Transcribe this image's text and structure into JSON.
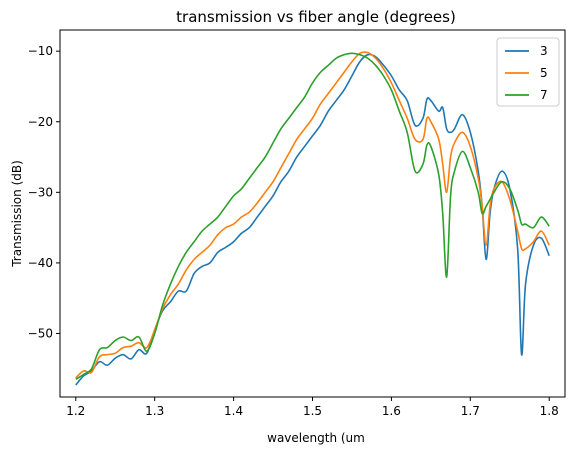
{
  "chart_data": {
    "type": "line",
    "title": "transmission vs fiber angle (degrees)",
    "xlabel": "wavelength (um",
    "ylabel": "Transmission (dB)",
    "xlim": [
      1.18,
      1.82
    ],
    "ylim": [
      -59,
      -7
    ],
    "xticks": [
      "1.2",
      "1.3",
      "1.4",
      "1.5",
      "1.6",
      "1.7",
      "1.8"
    ],
    "yticks": [
      "−10",
      "−20",
      "−30",
      "−40",
      "−50"
    ],
    "grid": false,
    "legend_position": "top-right",
    "series": [
      {
        "name": "3",
        "color": "#1f77b4",
        "points": [
          [
            1.2,
            -57.3
          ],
          [
            1.21,
            -56.0
          ],
          [
            1.22,
            -55.3
          ],
          [
            1.23,
            -54.0
          ],
          [
            1.24,
            -54.5
          ],
          [
            1.25,
            -53.5
          ],
          [
            1.26,
            -53.0
          ],
          [
            1.27,
            -53.6
          ],
          [
            1.28,
            -52.3
          ],
          [
            1.29,
            -52.8
          ],
          [
            1.3,
            -49.5
          ],
          [
            1.31,
            -46.8
          ],
          [
            1.32,
            -45.5
          ],
          [
            1.33,
            -44.0
          ],
          [
            1.34,
            -44.0
          ],
          [
            1.35,
            -41.5
          ],
          [
            1.36,
            -40.5
          ],
          [
            1.37,
            -40.0
          ],
          [
            1.38,
            -38.5
          ],
          [
            1.39,
            -37.8
          ],
          [
            1.4,
            -37.0
          ],
          [
            1.41,
            -35.8
          ],
          [
            1.42,
            -35.0
          ],
          [
            1.43,
            -33.5
          ],
          [
            1.44,
            -32.0
          ],
          [
            1.45,
            -30.5
          ],
          [
            1.46,
            -28.5
          ],
          [
            1.47,
            -27.0
          ],
          [
            1.48,
            -25.0
          ],
          [
            1.49,
            -23.5
          ],
          [
            1.5,
            -22.0
          ],
          [
            1.51,
            -20.5
          ],
          [
            1.52,
            -18.5
          ],
          [
            1.53,
            -17.0
          ],
          [
            1.54,
            -15.5
          ],
          [
            1.55,
            -13.5
          ],
          [
            1.56,
            -11.5
          ],
          [
            1.57,
            -10.5
          ],
          [
            1.58,
            -10.8
          ],
          [
            1.59,
            -12.0
          ],
          [
            1.6,
            -13.5
          ],
          [
            1.61,
            -15.5
          ],
          [
            1.62,
            -17.0
          ],
          [
            1.63,
            -20.5
          ],
          [
            1.64,
            -19.5
          ],
          [
            1.645,
            -16.8
          ],
          [
            1.65,
            -17.0
          ],
          [
            1.66,
            -18.5
          ],
          [
            1.665,
            -18.0
          ],
          [
            1.67,
            -21.0
          ],
          [
            1.675,
            -21.5
          ],
          [
            1.68,
            -21.0
          ],
          [
            1.69,
            -19.0
          ],
          [
            1.7,
            -21.5
          ],
          [
            1.71,
            -27.0
          ],
          [
            1.715,
            -32.0
          ],
          [
            1.72,
            -39.5
          ],
          [
            1.725,
            -33.0
          ],
          [
            1.73,
            -29.5
          ],
          [
            1.74,
            -27.0
          ],
          [
            1.75,
            -29.5
          ],
          [
            1.76,
            -38.0
          ],
          [
            1.765,
            -53.0
          ],
          [
            1.77,
            -43.0
          ],
          [
            1.78,
            -37.5
          ],
          [
            1.79,
            -36.5
          ],
          [
            1.8,
            -39.0
          ]
        ]
      },
      {
        "name": "5",
        "color": "#ff7f0e",
        "points": [
          [
            1.2,
            -56.3
          ],
          [
            1.21,
            -55.3
          ],
          [
            1.22,
            -55.5
          ],
          [
            1.23,
            -53.3
          ],
          [
            1.24,
            -53.0
          ],
          [
            1.25,
            -52.8
          ],
          [
            1.26,
            -52.0
          ],
          [
            1.27,
            -51.8
          ],
          [
            1.28,
            -51.3
          ],
          [
            1.29,
            -52.0
          ],
          [
            1.3,
            -49.5
          ],
          [
            1.31,
            -46.5
          ],
          [
            1.32,
            -44.5
          ],
          [
            1.33,
            -43.0
          ],
          [
            1.34,
            -41.0
          ],
          [
            1.35,
            -39.5
          ],
          [
            1.36,
            -38.5
          ],
          [
            1.37,
            -37.5
          ],
          [
            1.38,
            -36.0
          ],
          [
            1.39,
            -35.0
          ],
          [
            1.4,
            -34.5
          ],
          [
            1.41,
            -33.5
          ],
          [
            1.42,
            -32.8
          ],
          [
            1.43,
            -31.5
          ],
          [
            1.44,
            -30.0
          ],
          [
            1.45,
            -28.5
          ],
          [
            1.46,
            -26.5
          ],
          [
            1.47,
            -24.5
          ],
          [
            1.48,
            -22.5
          ],
          [
            1.49,
            -21.0
          ],
          [
            1.5,
            -19.5
          ],
          [
            1.51,
            -17.5
          ],
          [
            1.52,
            -16.0
          ],
          [
            1.53,
            -14.5
          ],
          [
            1.54,
            -13.0
          ],
          [
            1.55,
            -11.5
          ],
          [
            1.56,
            -10.3
          ],
          [
            1.57,
            -10.2
          ],
          [
            1.58,
            -11.0
          ],
          [
            1.59,
            -12.5
          ],
          [
            1.6,
            -14.5
          ],
          [
            1.61,
            -17.0
          ],
          [
            1.62,
            -19.5
          ],
          [
            1.63,
            -22.5
          ],
          [
            1.64,
            -22.5
          ],
          [
            1.645,
            -19.5
          ],
          [
            1.65,
            -20.0
          ],
          [
            1.66,
            -22.5
          ],
          [
            1.665,
            -26.0
          ],
          [
            1.67,
            -30.0
          ],
          [
            1.675,
            -25.0
          ],
          [
            1.68,
            -23.0
          ],
          [
            1.69,
            -21.5
          ],
          [
            1.7,
            -23.5
          ],
          [
            1.71,
            -28.0
          ],
          [
            1.715,
            -32.0
          ],
          [
            1.72,
            -37.5
          ],
          [
            1.725,
            -32.0
          ],
          [
            1.73,
            -29.5
          ],
          [
            1.74,
            -28.5
          ],
          [
            1.75,
            -31.0
          ],
          [
            1.76,
            -35.5
          ],
          [
            1.765,
            -38.0
          ],
          [
            1.77,
            -38.0
          ],
          [
            1.78,
            -37.0
          ],
          [
            1.79,
            -35.5
          ],
          [
            1.8,
            -37.5
          ]
        ]
      },
      {
        "name": "7",
        "color": "#2ca02c",
        "points": [
          [
            1.2,
            -56.5
          ],
          [
            1.21,
            -55.8
          ],
          [
            1.22,
            -55.0
          ],
          [
            1.23,
            -52.3
          ],
          [
            1.24,
            -52.0
          ],
          [
            1.25,
            -51.0
          ],
          [
            1.26,
            -50.5
          ],
          [
            1.27,
            -51.0
          ],
          [
            1.28,
            -50.5
          ],
          [
            1.29,
            -52.5
          ],
          [
            1.3,
            -50.0
          ],
          [
            1.31,
            -46.0
          ],
          [
            1.32,
            -43.0
          ],
          [
            1.33,
            -40.5
          ],
          [
            1.34,
            -38.5
          ],
          [
            1.35,
            -37.0
          ],
          [
            1.36,
            -35.5
          ],
          [
            1.37,
            -34.5
          ],
          [
            1.38,
            -33.5
          ],
          [
            1.39,
            -32.0
          ],
          [
            1.4,
            -30.5
          ],
          [
            1.41,
            -29.5
          ],
          [
            1.42,
            -28.0
          ],
          [
            1.43,
            -26.5
          ],
          [
            1.44,
            -25.0
          ],
          [
            1.45,
            -23.0
          ],
          [
            1.46,
            -21.0
          ],
          [
            1.47,
            -19.5
          ],
          [
            1.48,
            -18.0
          ],
          [
            1.49,
            -16.5
          ],
          [
            1.5,
            -14.5
          ],
          [
            1.51,
            -13.0
          ],
          [
            1.52,
            -12.0
          ],
          [
            1.53,
            -11.0
          ],
          [
            1.54,
            -10.5
          ],
          [
            1.55,
            -10.3
          ],
          [
            1.56,
            -10.5
          ],
          [
            1.57,
            -11.0
          ],
          [
            1.58,
            -12.0
          ],
          [
            1.59,
            -13.5
          ],
          [
            1.6,
            -15.5
          ],
          [
            1.61,
            -18.5
          ],
          [
            1.62,
            -21.5
          ],
          [
            1.63,
            -27.0
          ],
          [
            1.64,
            -26.0
          ],
          [
            1.645,
            -23.3
          ],
          [
            1.65,
            -23.5
          ],
          [
            1.66,
            -27.5
          ],
          [
            1.665,
            -33.0
          ],
          [
            1.67,
            -42.0
          ],
          [
            1.675,
            -30.5
          ],
          [
            1.68,
            -27.0
          ],
          [
            1.69,
            -24.2
          ],
          [
            1.7,
            -26.5
          ],
          [
            1.71,
            -30.0
          ],
          [
            1.715,
            -33.0
          ],
          [
            1.72,
            -32.0
          ],
          [
            1.725,
            -31.0
          ],
          [
            1.73,
            -30.0
          ],
          [
            1.74,
            -28.5
          ],
          [
            1.75,
            -29.5
          ],
          [
            1.76,
            -32.5
          ],
          [
            1.765,
            -34.5
          ],
          [
            1.77,
            -34.5
          ],
          [
            1.78,
            -35.0
          ],
          [
            1.79,
            -33.5
          ],
          [
            1.8,
            -34.8
          ]
        ]
      }
    ]
  }
}
